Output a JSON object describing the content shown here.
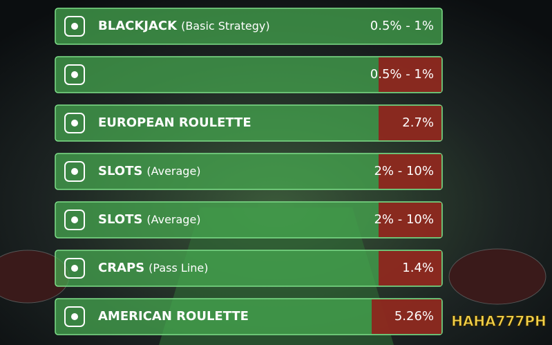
{
  "rows": [
    {
      "name": "BLACKJACK",
      "note": "(Basic Strategy)",
      "value": "0.5% - 1%",
      "highlighted": false
    },
    {
      "value": "0.5% - 1%",
      "highlighted": true
    },
    {
      "name": "EUROPEAN ROULETTE",
      "value": "2.7%",
      "highlighted": true
    },
    {
      "name": "SLOTS",
      "note": "(Average)",
      "value": "2% - 10%",
      "highlighted": true
    },
    {
      "name": "SLOTS",
      "note": "(Average)",
      "value": "2% - 10%",
      "highlighted": true
    },
    {
      "name": "CRAPS",
      "note": "(Pass Line)",
      "value": "1.4%",
      "highlighted": true
    },
    {
      "name": "AMERICAN ROULETTE",
      "value": "5.26%",
      "highlighted": true
    }
  ],
  "logo": "HAHA777PH"
}
